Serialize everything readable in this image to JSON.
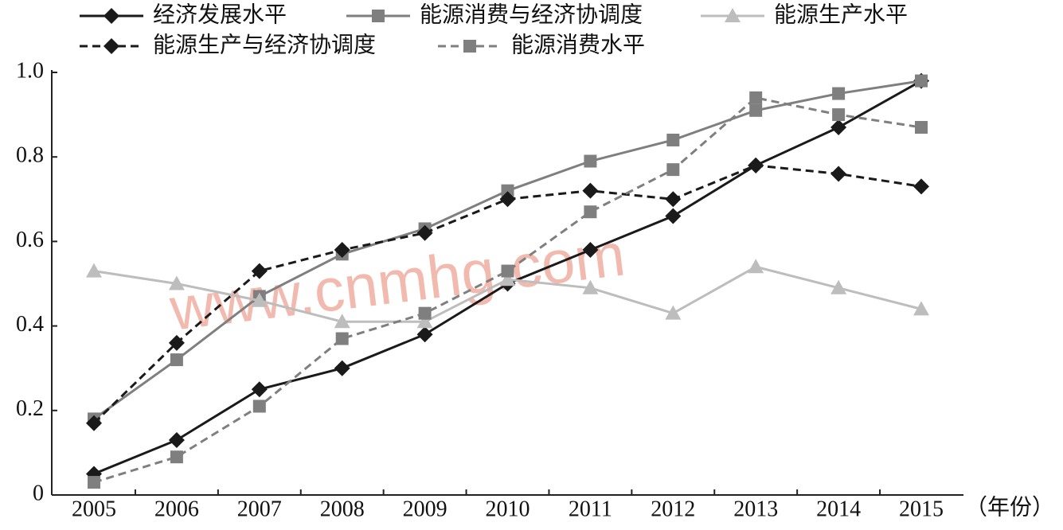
{
  "chart_data": {
    "type": "line",
    "categories": [
      "2005",
      "2006",
      "2007",
      "2008",
      "2009",
      "2010",
      "2011",
      "2012",
      "2013",
      "2014",
      "2015"
    ],
    "x_label": "（年份）",
    "watermark": "www.cnmhg.com",
    "ylim": [
      0,
      1
    ],
    "yticks": [
      0,
      0.2,
      0.4,
      0.6,
      0.8,
      {
        "value": 1,
        "label": "1.0"
      }
    ],
    "grid": false,
    "series": [
      {
        "name": "经济发展水平",
        "color": "#1a1a1a",
        "dash": false,
        "marker": "diamond",
        "values": [
          0.05,
          0.13,
          0.25,
          0.3,
          0.38,
          0.5,
          0.58,
          0.66,
          0.78,
          0.87,
          0.98
        ]
      },
      {
        "name": "能源消费与经济协调度",
        "color": "#7f7f7f",
        "dash": false,
        "marker": "square",
        "values": [
          0.18,
          0.32,
          0.47,
          0.57,
          0.63,
          0.72,
          0.79,
          0.84,
          0.91,
          0.95,
          0.98
        ]
      },
      {
        "name": "能源生产水平",
        "color": "#bdbdbd",
        "dash": false,
        "marker": "triangle",
        "values": [
          0.53,
          0.5,
          0.46,
          0.41,
          0.41,
          0.51,
          0.49,
          0.43,
          0.54,
          0.49,
          0.44
        ]
      },
      {
        "name": "能源生产与经济协调度",
        "color": "#1a1a1a",
        "dash": true,
        "marker": "diamond",
        "values": [
          0.17,
          0.36,
          0.53,
          0.58,
          0.62,
          0.7,
          0.72,
          0.7,
          0.78,
          0.76,
          0.73
        ]
      },
      {
        "name": "能源消费水平",
        "color": "#7f7f7f",
        "dash": true,
        "marker": "square",
        "values": [
          0.03,
          0.09,
          0.21,
          0.37,
          0.43,
          0.53,
          0.67,
          0.77,
          0.94,
          0.9,
          0.87
        ]
      }
    ]
  }
}
